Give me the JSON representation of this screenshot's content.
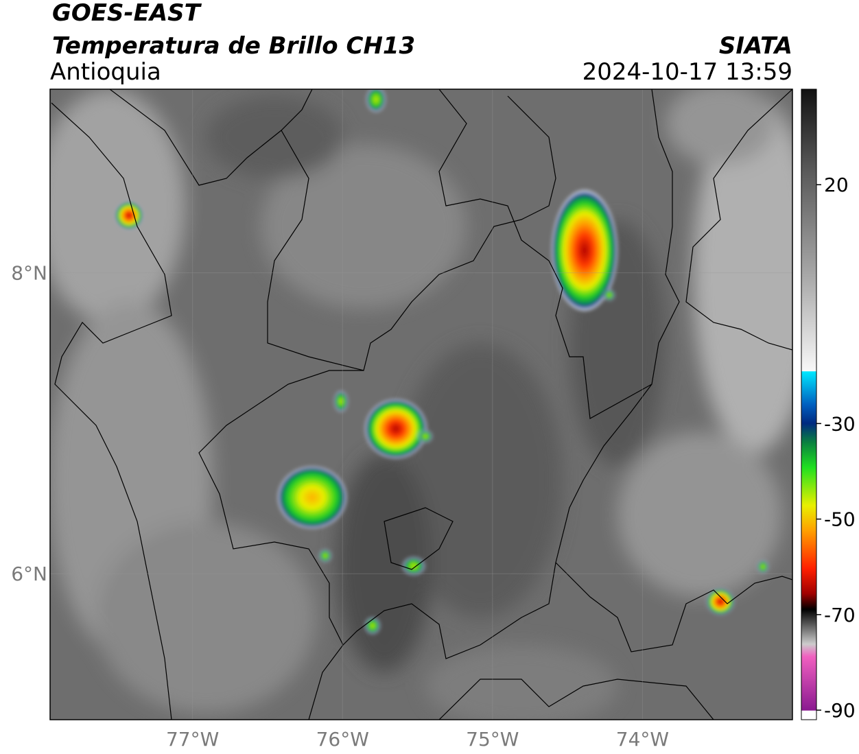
{
  "chart_data": {
    "type": "map",
    "title": "GOES-EAST",
    "subtitle": "Temperatura de Brillo CH13",
    "region": "Antioquia",
    "source": "SIATA",
    "timestamp": "2024-10-17 13:59",
    "xlim": [
      -77.95,
      -73.0
    ],
    "ylim": [
      5.03,
      9.22
    ],
    "xticks": [
      {
        "value": -77,
        "label": "77°W"
      },
      {
        "value": -76,
        "label": "76°W"
      },
      {
        "value": -75,
        "label": "75°W"
      },
      {
        "value": -74,
        "label": "74°W"
      }
    ],
    "yticks": [
      {
        "value": 6,
        "label": "6°N"
      },
      {
        "value": 8,
        "label": "8°N"
      }
    ],
    "grid": true,
    "colorbar": {
      "lim": [
        -92,
        40
      ],
      "ticks": [
        20,
        -30,
        -50,
        -70,
        -90
      ]
    }
  }
}
